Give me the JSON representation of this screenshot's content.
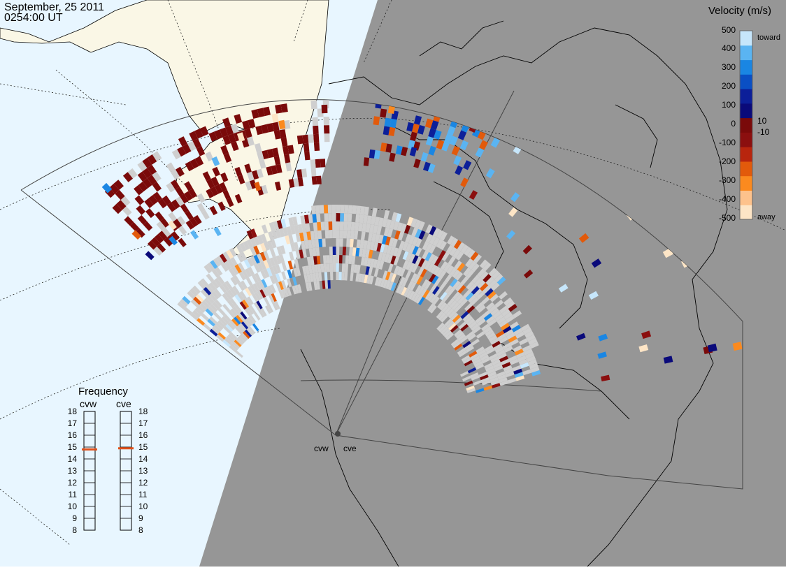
{
  "header": {
    "date": "September, 25 2011",
    "time": "0254:00 UT"
  },
  "legend": {
    "title": "Velocity (m/s)",
    "ticks": [
      "500",
      "400",
      "300",
      "200",
      "100",
      "10",
      "0",
      "-10",
      "-100",
      "-200",
      "-300",
      "-400",
      "-500"
    ],
    "toward_label": "toward",
    "away_label": "away",
    "colors": [
      "#fde5c6",
      "#fdc28c",
      "#fb8a1f",
      "#e25a0b",
      "#b8250e",
      "#8b0f0f",
      "#7a0a0a",
      "#0a0a7a",
      "#0c1f99",
      "#0a4fc4",
      "#1a86e3",
      "#5ab4f2",
      "#c6e6fb"
    ]
  },
  "frequency_panel": {
    "title": "Frequency",
    "radars": [
      {
        "name": "cvw",
        "value_mhz": 14.8
      },
      {
        "name": "cve",
        "value_mhz": 14.9
      }
    ],
    "scale": [
      "18",
      "17",
      "16",
      "15",
      "14",
      "13",
      "12",
      "11",
      "10",
      "9",
      "8"
    ],
    "marker_color": "#e0501a"
  },
  "radars": [
    {
      "name": "cvw",
      "label": "cvw"
    },
    {
      "name": "cve",
      "label": "cve"
    }
  ],
  "colors": {
    "ocean_day": "#e8f6ff",
    "land_day": "#faf7e6",
    "night": "#969696",
    "ground_scatter": "#cfcfcf"
  }
}
